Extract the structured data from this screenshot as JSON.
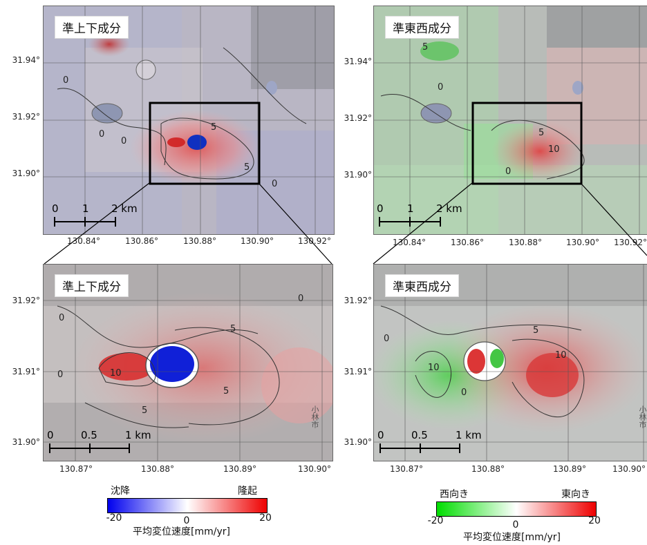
{
  "panels": {
    "top_left": {
      "label": "準上下成分",
      "lat_ticks": [
        "31.94°",
        "31.92°",
        "31.90°"
      ],
      "lon_ticks": [
        "130.84°",
        "130.86°",
        "130.88°",
        "130.90°",
        "130.92°"
      ],
      "scale": {
        "zero": "0",
        "mid": "1",
        "end": "2 km"
      },
      "contours": [
        "0",
        "0",
        "0",
        "5",
        "5",
        "0"
      ]
    },
    "top_right": {
      "label": "準東西成分",
      "lat_ticks": [
        "31.94°",
        "31.92°",
        "31.90°"
      ],
      "lon_ticks": [
        "130.84°",
        "130.86°",
        "130.88°",
        "130.90°",
        "130.92°"
      ],
      "scale": {
        "zero": "0",
        "mid": "1",
        "end": "2 km"
      },
      "contours": [
        "5",
        "0",
        "5",
        "10",
        "0"
      ]
    },
    "bottom_left": {
      "label": "準上下成分",
      "lat_ticks": [
        "31.92°",
        "31.91°",
        "31.90°"
      ],
      "lon_ticks": [
        "130.87°",
        "130.88°",
        "130.89°",
        "130.90°"
      ],
      "scale": {
        "zero": "0",
        "mid": "0.5",
        "end": "1 km"
      },
      "contours": [
        "0",
        "5",
        "10",
        "0",
        "5",
        "5",
        "0"
      ],
      "place_name": "小林市"
    },
    "bottom_right": {
      "label": "準東西成分",
      "lat_ticks": [
        "31.92°",
        "31.91°",
        "31.90°"
      ],
      "lon_ticks": [
        "130.87°",
        "130.88°",
        "130.89°",
        "130.90°"
      ],
      "scale": {
        "zero": "0",
        "mid": "0.5",
        "end": "1 km"
      },
      "contours": [
        "0",
        "10",
        "5",
        "10",
        "0"
      ],
      "place_name": "小林市"
    }
  },
  "colorbars": {
    "vertical": {
      "left_label": "沈降",
      "right_label": "隆起",
      "ticks": [
        "-20",
        "0",
        "20"
      ],
      "title": "平均変位速度[mm/yr]",
      "colors": [
        "#0000ee",
        "#ffffff",
        "#ee0000"
      ]
    },
    "eastwest": {
      "left_label": "西向き",
      "right_label": "東向き",
      "ticks": [
        "-20",
        "0",
        "20"
      ],
      "title": "平均変位速度[mm/yr]",
      "colors": [
        "#00dd00",
        "#ffffff",
        "#ee0000"
      ]
    }
  }
}
